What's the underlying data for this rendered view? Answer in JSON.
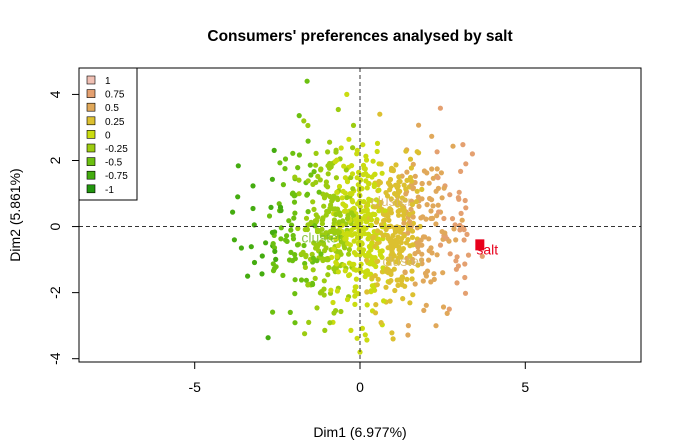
{
  "chart_data": {
    "type": "scatter",
    "title": "Consumers' preferences analysed by salt",
    "xlabel": "Dim1 (6.977%)",
    "ylabel": "Dim2 (5.861%)",
    "xlim": [
      -8.5,
      8.5
    ],
    "ylim": [
      -4.1,
      4.8
    ],
    "x_ticks": [
      -5,
      0,
      5
    ],
    "y_ticks": [
      -4,
      -2,
      0,
      2,
      4
    ],
    "grid": false,
    "reference_lines": {
      "x": 0,
      "y": 0,
      "style": "dashed"
    },
    "legend": {
      "position": "top-left",
      "entries": [
        {
          "label": "1",
          "color": "#f0c0b4"
        },
        {
          "label": "0.75",
          "color": "#e4a070"
        },
        {
          "label": "0.5",
          "color": "#e0a85a"
        },
        {
          "label": "0.25",
          "color": "#dcc030"
        },
        {
          "label": "0",
          "color": "#cadc10"
        },
        {
          "label": "-0.25",
          "color": "#9ccc10"
        },
        {
          "label": "-0.5",
          "color": "#6cc010"
        },
        {
          "label": "-0.75",
          "color": "#44ac10"
        },
        {
          "label": "-1",
          "color": "#22960e"
        }
      ]
    },
    "series": [
      {
        "points_count": 900,
        "x_mean": 0.2,
        "x_sd": 1.35,
        "y_mean": 0.0,
        "y_sd": 1.25,
        "seed": 12345
      }
    ],
    "extra_points": [
      {
        "x": -1.6,
        "y": 4.4
      },
      {
        "x": -0.4,
        "y": 4.0
      },
      {
        "x": 0.6,
        "y": 3.4
      },
      {
        "x": -1.7,
        "y": 3.2
      },
      {
        "x": 3.4,
        "y": 2.2
      },
      {
        "x": 3.2,
        "y": 1.9
      },
      {
        "x": -3.7,
        "y": 0.9
      },
      {
        "x": -3.8,
        "y": -0.4
      },
      {
        "x": -3.4,
        "y": -1.5
      },
      {
        "x": 0.0,
        "y": -3.8
      },
      {
        "x": 3.7,
        "y": -0.9
      },
      {
        "x": 2.7,
        "y": -2.5
      },
      {
        "x": 2.3,
        "y": -3.0
      },
      {
        "x": 1.0,
        "y": -3.4
      }
    ],
    "annotations": [
      {
        "text": "salt",
        "x": 3.64,
        "y": -0.69,
        "color": "#e8001c",
        "marker": true
      },
      {
        "text": "cluster",
        "x": -1.15,
        "y": -0.33,
        "color": "#78bc2a",
        "marker": false
      },
      {
        "text": "cluster",
        "x": 1.3,
        "y": -1.05,
        "color": "#d4b866",
        "marker": false
      },
      {
        "text": "cluster",
        "x": 0.95,
        "y": 0.78,
        "color": "#d8b070",
        "marker": false
      }
    ]
  }
}
